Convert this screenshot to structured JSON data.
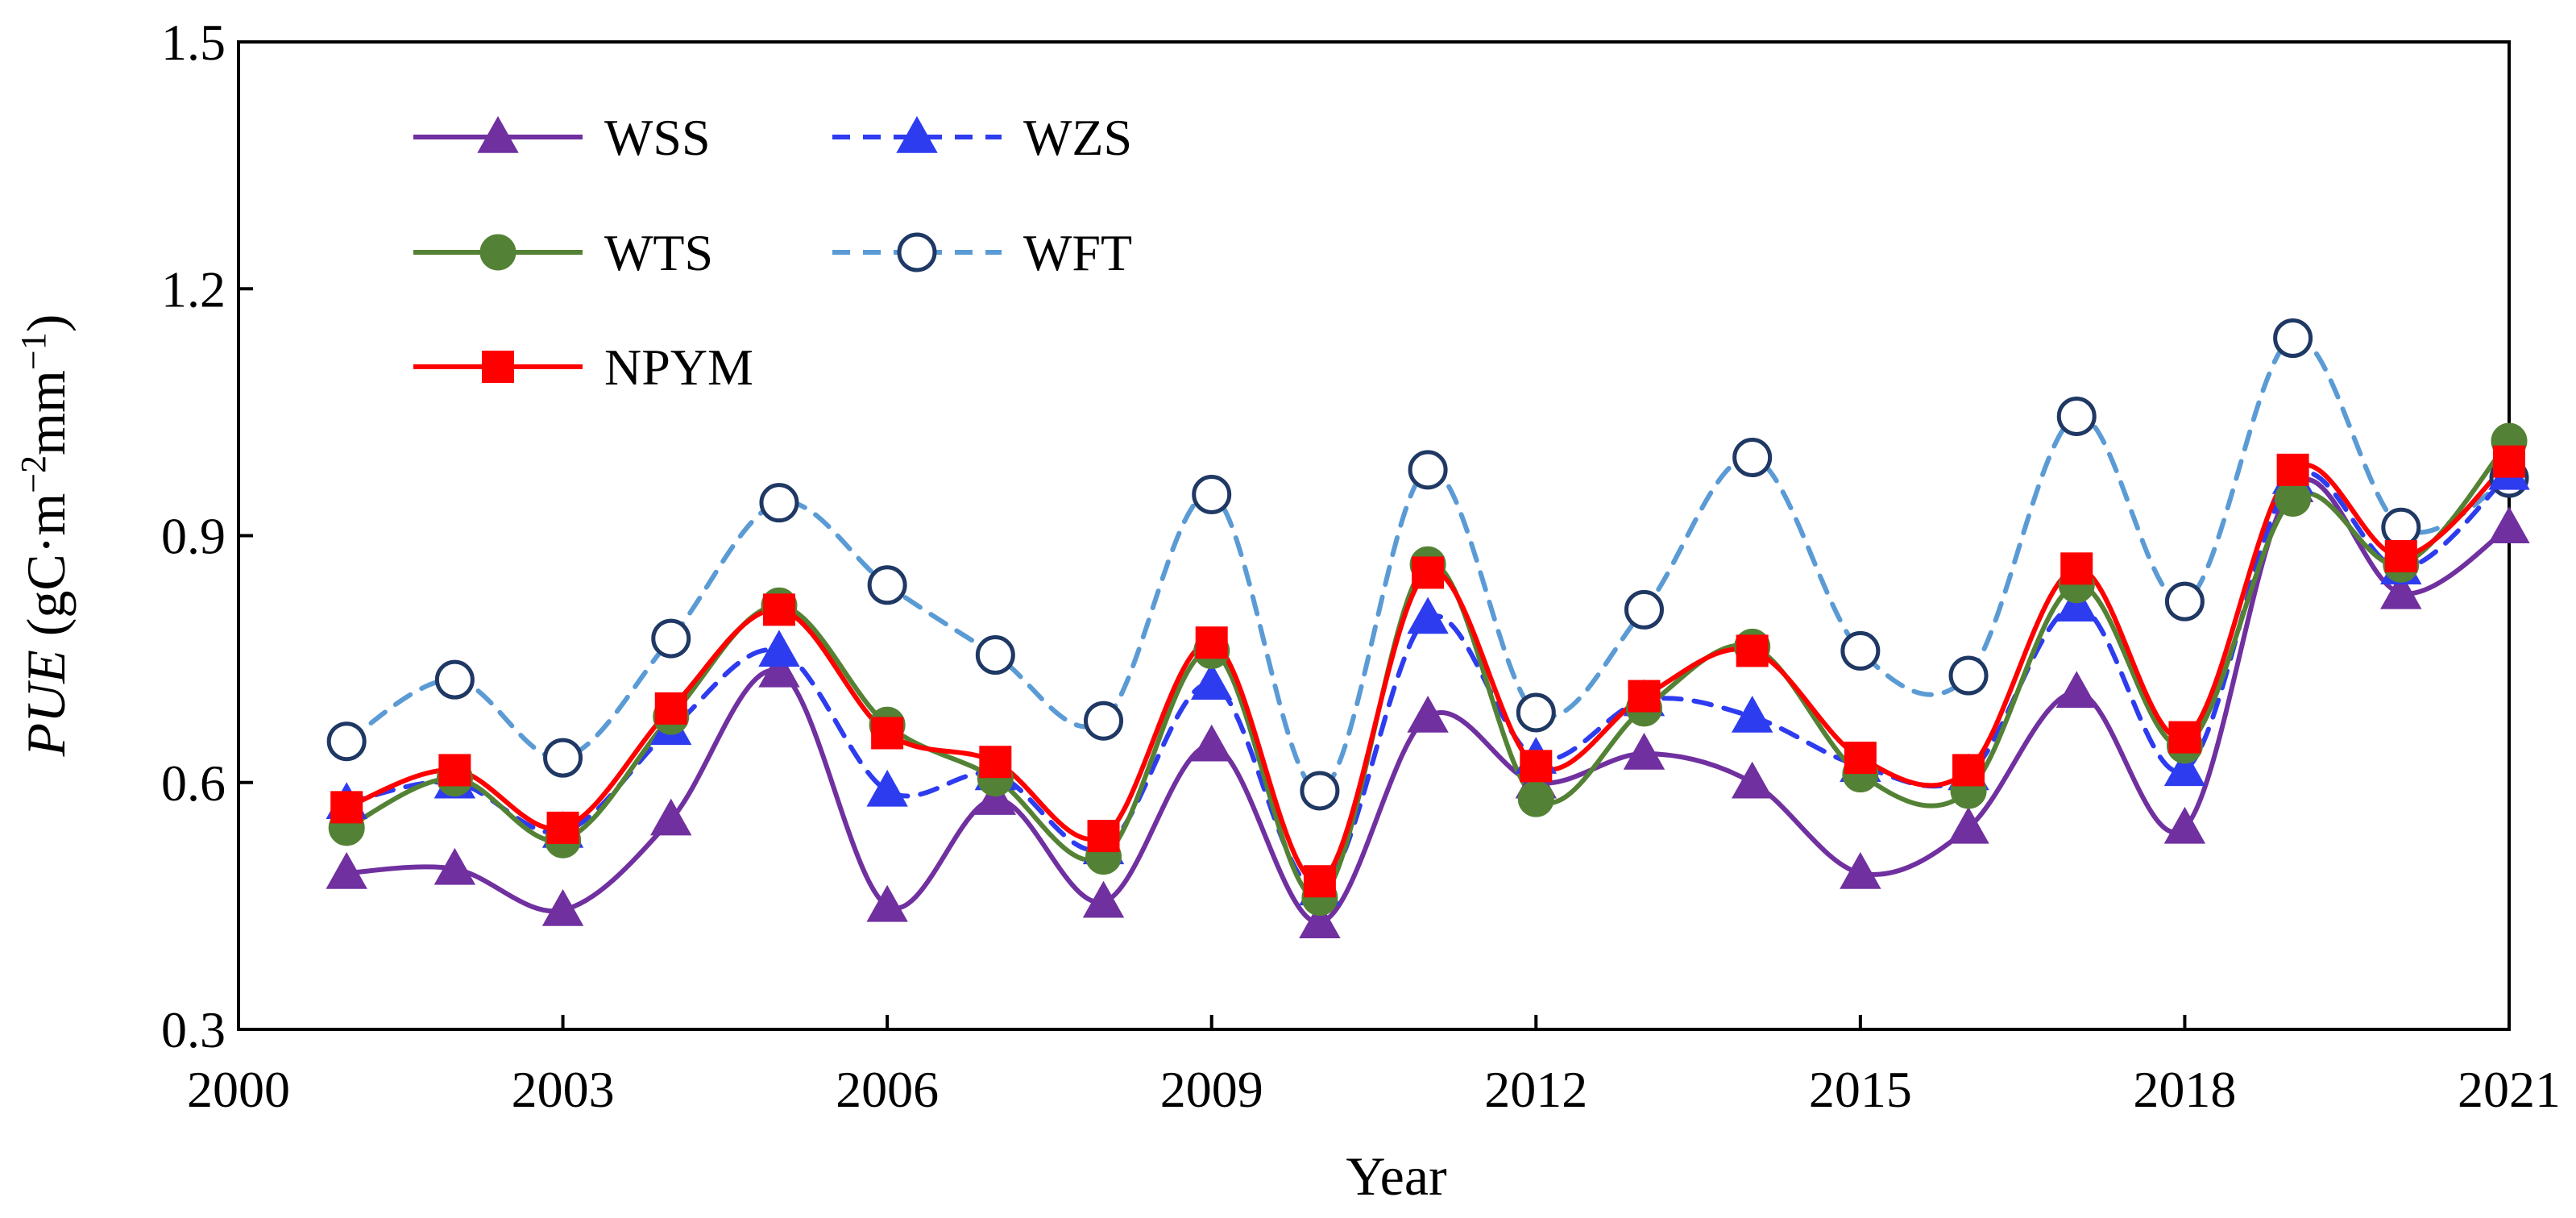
{
  "chart_data": {
    "type": "line",
    "title": "",
    "xlabel": "Year",
    "ylabel": {
      "italic": "PUE",
      "unit_open": " (gC·m",
      "sup1": "−2",
      "unit_mid": "mm",
      "sup2": "−1",
      "unit_close": ")"
    },
    "xlim": [
      2000,
      2021
    ],
    "ylim": [
      0.3,
      1.5
    ],
    "xticks": [
      2000,
      2003,
      2006,
      2009,
      2012,
      2015,
      2018,
      2021
    ],
    "yticks": [
      0.3,
      0.6,
      0.9,
      1.2,
      1.5
    ],
    "ytick_labels": [
      "0.3",
      "0.6",
      "0.9",
      "1.2",
      "1.5"
    ],
    "x": [
      2001,
      2002,
      2003,
      2004,
      2005,
      2006,
      2007,
      2008,
      2009,
      2010,
      2011,
      2012,
      2013,
      2014,
      2015,
      2016,
      2017,
      2018,
      2019,
      2020,
      2021
    ],
    "legend_position": "top-left",
    "series": [
      {
        "name": "WFT",
        "color": "#5B9BD5",
        "marker_edge": "#1F3864",
        "marker": "open-circle",
        "dash": "dashed",
        "values": [
          0.65,
          0.725,
          0.63,
          0.775,
          0.94,
          0.84,
          0.755,
          0.675,
          0.95,
          0.59,
          0.98,
          0.685,
          0.81,
          0.995,
          0.76,
          0.73,
          1.045,
          0.82,
          1.14,
          0.91,
          0.97
        ]
      },
      {
        "name": "WSS",
        "color": "#7030A0",
        "marker": "triangle",
        "dash": "solid",
        "values": [
          0.49,
          0.495,
          0.445,
          0.555,
          0.735,
          0.45,
          0.58,
          0.455,
          0.645,
          0.43,
          0.68,
          0.6,
          0.635,
          0.6,
          0.49,
          0.545,
          0.71,
          0.545,
          0.96,
          0.83,
          0.91
        ]
      },
      {
        "name": "WZS",
        "color": "#2E3CF0",
        "marker": "triangle",
        "dash": "dashed",
        "values": [
          0.575,
          0.6,
          0.54,
          0.665,
          0.76,
          0.59,
          0.61,
          0.52,
          0.72,
          0.47,
          0.8,
          0.63,
          0.7,
          0.68,
          0.62,
          0.61,
          0.815,
          0.615,
          0.97,
          0.86,
          0.975
        ]
      },
      {
        "name": "WTS",
        "color": "#548235",
        "marker_fill": "#538135",
        "marker": "circle",
        "dash": "solid",
        "values": [
          0.545,
          0.605,
          0.53,
          0.68,
          0.815,
          0.67,
          0.605,
          0.51,
          0.76,
          0.46,
          0.865,
          0.58,
          0.69,
          0.765,
          0.61,
          0.59,
          0.84,
          0.645,
          0.945,
          0.865,
          1.015
        ]
      },
      {
        "name": "NPYM",
        "color": "#FF0000",
        "marker": "square",
        "dash": "solid",
        "values": [
          0.57,
          0.615,
          0.545,
          0.69,
          0.81,
          0.66,
          0.625,
          0.535,
          0.77,
          0.48,
          0.855,
          0.62,
          0.705,
          0.76,
          0.63,
          0.615,
          0.86,
          0.655,
          0.98,
          0.875,
          0.99
        ]
      }
    ],
    "legend_order": [
      "WSS",
      "WZS",
      "WTS",
      "WFT",
      "NPYM"
    ]
  }
}
